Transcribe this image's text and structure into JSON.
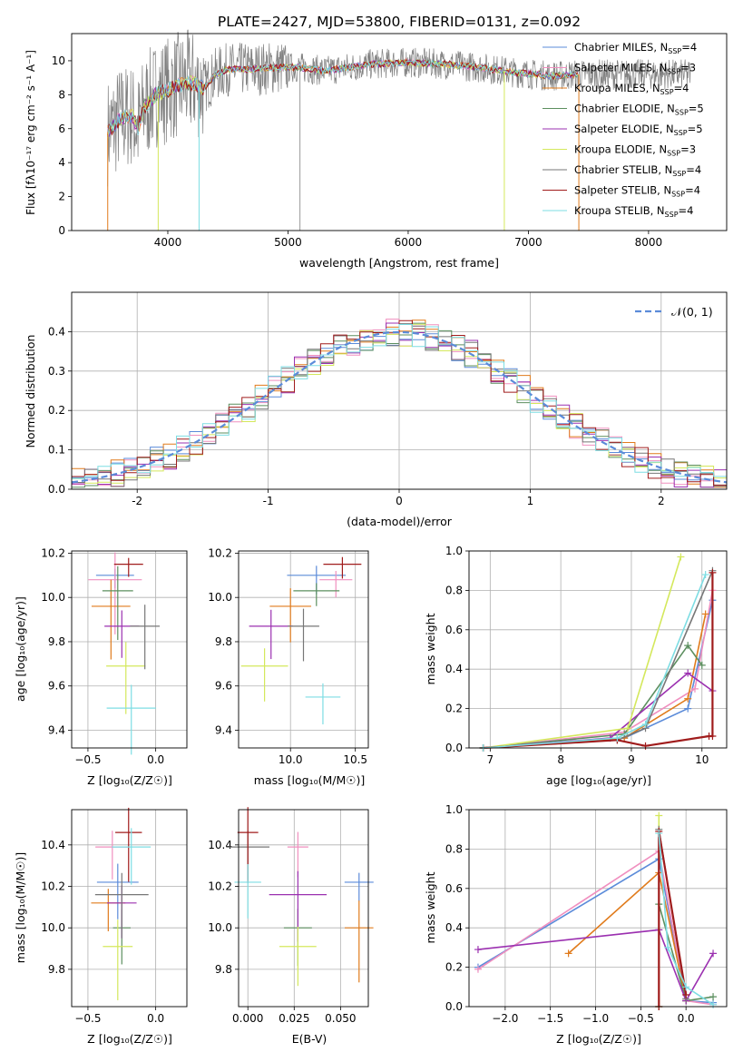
{
  "spectrum": {
    "title": "PLATE=2427, MJD=53800, FIBERID=0131, z=0.092",
    "xlabel": "wavelength [Angstrom, rest frame]",
    "ylabel": "Flux [fλ10⁻¹⁷ erg cm⁻² s⁻¹ A⁻¹]",
    "legend": [
      "Chabrier MILES, N_SSP=4",
      "Salpeter MILES, N_SSP=3",
      "Kroupa MILES, N_SSP=4",
      "Chabrier ELODIE, N_SSP=5",
      "Salpeter ELODIE, N_SSP=5",
      "Kroupa ELODIE, N_SSP=3",
      "Chabrier STELIB, N_SSP=4",
      "Salpeter STELIB, N_SSP=4",
      "Kroupa STELIB, N_SSP=4"
    ]
  },
  "hist": {
    "xlabel": "(data-model)/error",
    "ylabel": "Normed distribution",
    "legend_label": "𝒩(0, 1)"
  },
  "panels": {
    "age_vs_z": {
      "xlabel": "Z [log₁₀(Z/Z☉)]",
      "ylabel": "age  [log₁₀(age/yr)]"
    },
    "age_vs_mass": {
      "xlabel": "mass [log₁₀(M/M☉)]"
    },
    "weight_vs_age": {
      "xlabel": "age  [log₁₀(age/yr)]",
      "ylabel": "mass weight"
    },
    "mass_vs_z": {
      "xlabel": "Z [log₁₀(Z/Z☉)]",
      "ylabel": "mass [log₁₀(M/M☉)]"
    },
    "mass_vs_ebv": {
      "xlabel": "E(B-V)"
    },
    "weight_vs_z": {
      "xlabel": "Z [log₁₀(Z/Z☉)]",
      "ylabel": "mass weight"
    }
  },
  "colors": [
    "#5b8bd9",
    "#f08fbf",
    "#e07b1c",
    "#5c8f5f",
    "#9b30b0",
    "#d4e85c",
    "#777777",
    "#a01c1c",
    "#7ddde3"
  ],
  "chart_data": [
    {
      "type": "line",
      "title": "PLATE=2427, MJD=53800, FIBERID=0131, z=0.092",
      "xlabel": "wavelength [Angstrom, rest frame]",
      "xlim": [
        3200,
        8650
      ],
      "ylim": [
        0,
        11.6
      ],
      "xticks": [
        4000,
        5000,
        6000,
        7000,
        8000
      ],
      "yticks": [
        0,
        2,
        4,
        6,
        8,
        10
      ],
      "model_curve": [
        [
          3500,
          5.8
        ],
        [
          3600,
          6.6
        ],
        [
          3700,
          6.8
        ],
        [
          3750,
          6.0
        ],
        [
          3800,
          7.2
        ],
        [
          3900,
          8.0
        ],
        [
          4000,
          8.3
        ],
        [
          4100,
          8.6
        ],
        [
          4200,
          8.7
        ],
        [
          4300,
          8.4
        ],
        [
          4400,
          9.2
        ],
        [
          4500,
          9.5
        ],
        [
          4700,
          9.5
        ],
        [
          4900,
          9.6
        ],
        [
          5100,
          9.6
        ],
        [
          5300,
          9.4
        ],
        [
          5500,
          9.6
        ],
        [
          5700,
          9.8
        ],
        [
          6000,
          9.9
        ],
        [
          6300,
          9.8
        ],
        [
          6600,
          9.6
        ],
        [
          6900,
          9.3
        ],
        [
          7200,
          9.1
        ],
        [
          7400,
          9.2
        ]
      ],
      "spikes_to_zero": [
        3500,
        3920,
        4260,
        6800,
        7420
      ],
      "legend_position": "top-right"
    },
    {
      "type": "histogram",
      "xlabel": "(data-model)/error",
      "ylabel": "Normed distribution",
      "xlim": [
        -2.5,
        2.5
      ],
      "ylim": [
        0,
        0.5
      ],
      "xticks": [
        -2,
        -1,
        0,
        1,
        2
      ],
      "yticks": [
        0.0,
        0.1,
        0.2,
        0.3,
        0.4
      ],
      "bin_width": 0.1,
      "reference_curve": "N(0,1)",
      "grid": true,
      "legend_position": "top-right"
    },
    {
      "type": "scatter",
      "xlabel": "Z [log10(Z/Z☉)]",
      "ylabel": "age [log10(age/yr)]",
      "xlim": [
        -0.62,
        0.23
      ],
      "ylim": [
        9.32,
        10.21
      ],
      "points": [
        [
          -0.3,
          10.1
        ],
        [
          -0.3,
          10.08
        ],
        [
          -0.33,
          9.96
        ],
        [
          -0.28,
          10.03
        ],
        [
          -0.25,
          9.87
        ],
        [
          -0.22,
          9.69
        ],
        [
          -0.08,
          9.87
        ],
        [
          -0.2,
          10.15
        ],
        [
          -0.18,
          9.5
        ]
      ],
      "grid": true
    },
    {
      "type": "scatter",
      "xlabel": "mass [log10(M/M☉)]",
      "xlim": [
        9.6,
        10.6
      ],
      "ylim": [
        9.32,
        10.21
      ],
      "points": [
        [
          10.2,
          10.1
        ],
        [
          10.35,
          10.08
        ],
        [
          10.0,
          9.96
        ],
        [
          10.2,
          10.03
        ],
        [
          9.85,
          9.87
        ],
        [
          9.8,
          9.69
        ],
        [
          10.1,
          9.87
        ],
        [
          10.4,
          10.15
        ],
        [
          10.25,
          9.55
        ]
      ],
      "grid": true
    },
    {
      "type": "line",
      "xlabel": "age [log10(age/yr)]",
      "ylabel": "mass weight",
      "xlim": [
        6.7,
        10.35
      ],
      "ylim": [
        0,
        1
      ],
      "series": [
        {
          "x": [
            6.9,
            8.9,
            9.8,
            10.15
          ],
          "y": [
            0,
            0.05,
            0.2,
            0.75
          ]
        },
        {
          "x": [
            6.9,
            8.9,
            9.9,
            10.15
          ],
          "y": [
            0,
            0.08,
            0.3,
            0.8
          ]
        },
        {
          "x": [
            6.9,
            8.9,
            9.8,
            10.05
          ],
          "y": [
            0,
            0.05,
            0.25,
            0.68
          ]
        },
        {
          "x": [
            6.9,
            8.9,
            9.8,
            10.0
          ],
          "y": [
            0,
            0.07,
            0.52,
            0.42
          ]
        },
        {
          "x": [
            6.9,
            8.7,
            9.8,
            10.15
          ],
          "y": [
            0,
            0.05,
            0.38,
            0.29
          ]
        },
        {
          "x": [
            6.9,
            8.95,
            9.7
          ],
          "y": [
            0,
            0.1,
            0.97
          ]
        },
        {
          "x": [
            6.9,
            8.8,
            9.2,
            10.15
          ],
          "y": [
            0,
            0.04,
            0.1,
            0.9
          ]
        },
        {
          "x": [
            6.9,
            8.8,
            9.2,
            10.1,
            10.15,
            10.15
          ],
          "y": [
            0,
            0.04,
            0.01,
            0.06,
            0.06,
            0.89
          ]
        },
        {
          "x": [
            6.9,
            8.8,
            9.2,
            10.05
          ],
          "y": [
            0,
            0.05,
            0.12,
            0.88
          ]
        }
      ],
      "grid": true
    },
    {
      "type": "scatter",
      "xlabel": "Z [log10(Z/Z☉)]",
      "ylabel": "mass [log10(M/M☉)]",
      "xlim": [
        -0.62,
        0.23
      ],
      "ylim": [
        9.62,
        10.57
      ],
      "points": [
        [
          -0.28,
          10.22
        ],
        [
          -0.32,
          10.39
        ],
        [
          -0.35,
          10.12
        ],
        [
          -0.25,
          10.0
        ],
        [
          -0.25,
          10.12
        ],
        [
          -0.28,
          9.91
        ],
        [
          -0.25,
          10.16
        ],
        [
          -0.2,
          10.46
        ],
        [
          -0.18,
          10.39
        ]
      ],
      "grid": true
    },
    {
      "type": "scatter",
      "xlabel": "E(B-V)",
      "xlim": [
        -0.005,
        0.065
      ],
      "ylim": [
        9.62,
        10.57
      ],
      "points": [
        [
          0.06,
          10.22
        ],
        [
          0.027,
          10.39
        ],
        [
          0.06,
          10.0
        ],
        [
          0.027,
          10.0
        ],
        [
          0.027,
          10.16
        ],
        [
          0.027,
          9.91
        ],
        [
          0.0,
          10.39
        ],
        [
          0.0,
          10.46
        ],
        [
          0.0,
          10.22
        ]
      ],
      "grid": true
    },
    {
      "type": "line",
      "xlabel": "Z [log10(Z/Z☉)]",
      "ylabel": "mass weight",
      "xlim": [
        -2.4,
        0.45
      ],
      "ylim": [
        0,
        1
      ],
      "series": [
        {
          "x": [
            -2.3,
            -0.3,
            0.0,
            0.3
          ],
          "y": [
            0.2,
            0.75,
            0.03,
            0.02
          ]
        },
        {
          "x": [
            -2.3,
            -0.3,
            0.0,
            0.3
          ],
          "y": [
            0.19,
            0.79,
            0.03,
            0.01
          ]
        },
        {
          "x": [
            -1.3,
            -0.3,
            0.0
          ],
          "y": [
            0.27,
            0.68,
            0.03
          ]
        },
        {
          "x": [
            -0.3,
            0.0,
            0.3
          ],
          "y": [
            0.52,
            0.03,
            0.05
          ]
        },
        {
          "x": [
            -2.3,
            -0.3,
            0.0,
            0.3
          ],
          "y": [
            0.29,
            0.39,
            0.03,
            0.27
          ]
        },
        {
          "x": [
            -0.3,
            -0.3
          ],
          "y": [
            0.0,
            0.97
          ]
        },
        {
          "x": [
            -0.3,
            -0.3,
            0.0
          ],
          "y": [
            0.0,
            0.9,
            0.04
          ]
        },
        {
          "x": [
            -0.3,
            -0.3,
            0.0
          ],
          "y": [
            0.0,
            0.89,
            0.06
          ]
        },
        {
          "x": [
            -0.3,
            -0.2,
            0.0,
            0.3
          ],
          "y": [
            0.88,
            0.3,
            0.1,
            0.01
          ]
        }
      ],
      "grid": true
    }
  ]
}
